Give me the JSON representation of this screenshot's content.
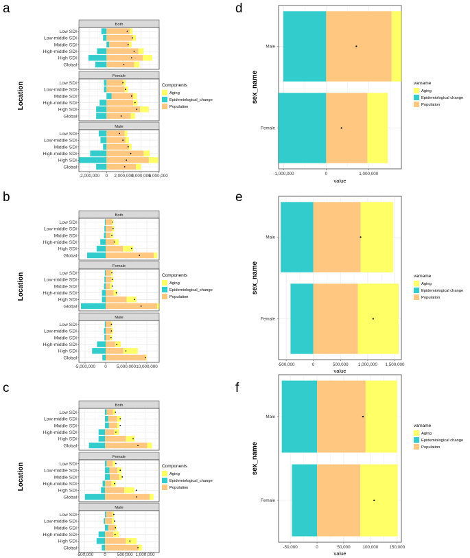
{
  "colors": {
    "aging": "#FFFF66",
    "epidemiological_change": "#33CCCC",
    "population": "#FFC77F",
    "strip_bg": "#D9D9D9",
    "grid": "#EBEBEB",
    "point": "#000000"
  },
  "chart_data": [
    {
      "panel": "a",
      "type": "bar",
      "orientation": "horizontal-stacked",
      "ylabel": "Location",
      "legend_title": "Components",
      "legend_items": [
        "Aging",
        "Epidemiological_change",
        "Population"
      ],
      "categories": [
        "Low SDI",
        "Low-middle SDI",
        "Middle SDI",
        "High-middle SDI",
        "High SDI",
        "Global"
      ],
      "xlim": [
        -3200000,
        6100000
      ],
      "xticks": [
        -2000000,
        0,
        2000000,
        4000000,
        6000000
      ],
      "xtick_labels": [
        "-2,000,000",
        "0",
        "2,000,000",
        "4,000,000",
        "6,000,000"
      ],
      "facets": [
        {
          "name": "Both",
          "aging": [
            300000,
            400000,
            300000,
            600000,
            1100000,
            600000
          ],
          "epidemiological_change": [
            -600000,
            -400000,
            300000,
            -1100000,
            -2100000,
            -1300000
          ],
          "population": [
            2700000,
            3000000,
            2300000,
            3700000,
            4200000,
            3200000
          ],
          "total": [
            2400000,
            3000000,
            2500000,
            3200000,
            2900000,
            2000000
          ]
        },
        {
          "name": "Female",
          "aging": [
            300000,
            400000,
            400000,
            500000,
            1000000,
            500000
          ],
          "epidemiological_change": [
            -300000,
            -300000,
            600000,
            -800000,
            -1200000,
            -1200000
          ],
          "population": [
            1900000,
            2100000,
            2500000,
            3100000,
            3900000,
            2800000
          ],
          "total": [
            1900000,
            2200000,
            2900000,
            3300000,
            3500000,
            1700000
          ]
        },
        {
          "name": "Male",
          "aging": [
            300000,
            400000,
            300000,
            700000,
            1100000,
            600000
          ],
          "epidemiological_change": [
            -900000,
            -700000,
            -400000,
            -1900000,
            -3200000,
            -1200000
          ],
          "population": [
            2100000,
            2200000,
            2600000,
            4300000,
            4900000,
            3400000
          ],
          "total": [
            1500000,
            1900000,
            2500000,
            2800000,
            2300000,
            2100000
          ]
        }
      ]
    },
    {
      "panel": "b",
      "type": "bar",
      "orientation": "horizontal-stacked",
      "ylabel": "Location",
      "legend_title": "Components",
      "legend_items": [
        "Aging",
        "Epidemiological_change",
        "Population"
      ],
      "categories": [
        "Low SDI",
        "Low-middle SDI",
        "Middle SDI",
        "High-middle SDI",
        "High SDI",
        "Global"
      ],
      "xlim": [
        -6500000,
        13000000
      ],
      "xticks": [
        -5000000,
        0,
        5000000,
        10000000
      ],
      "xtick_labels": [
        "-5,000,000",
        "0",
        "5,000,000",
        "10,000,000"
      ],
      "facets": [
        {
          "name": "Both",
          "aging": [
            400000,
            500000,
            600000,
            1100000,
            2500000,
            800000
          ],
          "epidemiological_change": [
            -200000,
            -300000,
            -400000,
            -1300000,
            -2200000,
            -4500000
          ],
          "population": [
            1500000,
            1600000,
            1200000,
            2100000,
            4200000,
            11700000
          ],
          "total": [
            1700000,
            1800000,
            1500000,
            2100000,
            6300000,
            8200000
          ]
        },
        {
          "name": "Female",
          "aging": [
            400000,
            500000,
            600000,
            900000,
            2400000,
            600000
          ],
          "epidemiological_change": [
            -200000,
            -300000,
            -400000,
            -900000,
            -900000,
            -6000000
          ],
          "population": [
            1300000,
            1400000,
            1000000,
            1900000,
            5100000,
            12500000
          ],
          "total": [
            1500000,
            1600000,
            1600000,
            2600000,
            7000000,
            8600000
          ]
        },
        {
          "name": "Male",
          "aging": [
            300000,
            400000,
            600000,
            1400000,
            3500000,
            200000
          ],
          "epidemiological_change": [
            -200000,
            -400000,
            -300000,
            -2100000,
            -3300000,
            -800000
          ],
          "population": [
            1300000,
            1400000,
            1000000,
            2300000,
            4300000,
            9800000
          ],
          "total": [
            1400000,
            1400000,
            1300000,
            2700000,
            4900000,
            9700000
          ]
        }
      ]
    },
    {
      "panel": "c",
      "type": "bar",
      "orientation": "horizontal-stacked",
      "ylabel": "Location",
      "legend_title": "Components",
      "legend_items": [
        "Aging",
        "Epidemiological_change",
        "Population"
      ],
      "categories": [
        "Low SDI",
        "Low-middle SDI",
        "Middle SDI",
        "High-middle SDI",
        "High SDI",
        "Global"
      ],
      "xlim": [
        -650000,
        1350000
      ],
      "xticks": [
        -500000,
        0,
        500000,
        1000000
      ],
      "xtick_labels": [
        "-500,000",
        "0",
        "500,000",
        "1,000,000"
      ],
      "facets": [
        {
          "name": "Both",
          "aging": [
            60000,
            100000,
            60000,
            120000,
            220000,
            120000
          ],
          "epidemiological_change": [
            40000,
            80000,
            100000,
            -160000,
            -160000,
            -400000
          ],
          "population": [
            160000,
            220000,
            190000,
            230000,
            520000,
            1050000
          ],
          "total": [
            260000,
            380000,
            380000,
            270000,
            700000,
            820000
          ]
        },
        {
          "name": "Female",
          "aging": [
            60000,
            100000,
            70000,
            110000,
            250000,
            100000
          ],
          "epidemiological_change": [
            40000,
            110000,
            120000,
            -60000,
            -100000,
            -500000
          ],
          "population": [
            150000,
            200000,
            230000,
            160000,
            480000,
            1110000
          ],
          "total": [
            270000,
            380000,
            430000,
            240000,
            780000,
            790000
          ]
        },
        {
          "name": "Male",
          "aging": [
            40000,
            60000,
            40000,
            140000,
            270000,
            90000
          ],
          "epidemiological_change": [
            30000,
            -30000,
            80000,
            -160000,
            -210000,
            -80000
          ],
          "population": [
            150000,
            170000,
            170000,
            210000,
            520000,
            830000
          ],
          "total": [
            220000,
            240000,
            260000,
            250000,
            620000,
            820000
          ]
        }
      ]
    },
    {
      "panel": "d",
      "type": "bar",
      "orientation": "horizontal-stacked",
      "ylabel": "sex_name",
      "xlabel": "value",
      "legend_title": "varname",
      "legend_items": [
        "Aging",
        "Epidemiological change",
        "Population"
      ],
      "categories": [
        "Male",
        "Female"
      ],
      "xlim": [
        -1120000,
        1770000
      ],
      "xticks": [
        -1000000,
        0,
        1000000
      ],
      "xtick_labels": [
        "-1,000,000",
        "0",
        "1,000,000"
      ],
      "aging": [
        240000,
        480000
      ],
      "epidemiological_change": [
        -1010000,
        -1130000
      ],
      "population": [
        1540000,
        970000
      ],
      "total": [
        710000,
        360000
      ]
    },
    {
      "panel": "e",
      "type": "bar",
      "orientation": "horizontal-stacked",
      "ylabel": "sex_name",
      "xlabel": "value",
      "legend_title": "varname",
      "legend_items": [
        "Aging",
        "Epidemiological change",
        "Population"
      ],
      "categories": [
        "Male",
        "Female"
      ],
      "xlim": [
        -640000,
        1620000
      ],
      "xticks": [
        -500000,
        0,
        500000,
        1000000,
        1500000
      ],
      "xtick_labels": [
        "-500,000",
        "0",
        "500,000",
        "1,000,000",
        "1,500,000"
      ],
      "aging": [
        600000,
        750000
      ],
      "epidemiological_change": [
        -600000,
        -420000
      ],
      "population": [
        870000,
        820000
      ],
      "total": [
        870000,
        1100000
      ]
    },
    {
      "panel": "f",
      "type": "bar",
      "orientation": "horizontal-stacked",
      "ylabel": "sex_name",
      "xlabel": "value",
      "legend_title": "varname",
      "legend_items": [
        "Aging",
        "Epidemiological change",
        "Population"
      ],
      "categories": [
        "Male",
        "Female"
      ],
      "xlim": [
        -72000,
        158000
      ],
      "xticks": [
        -50000,
        0,
        50000,
        100000,
        150000
      ],
      "xtick_labels": [
        "-50,000",
        "0",
        "50,000",
        "100,000",
        "150,000"
      ],
      "aging": [
        59000,
        70000
      ],
      "epidemiological_change": [
        -66000,
        -47000
      ],
      "population": [
        91000,
        81000
      ],
      "total": [
        86000,
        107000
      ]
    }
  ]
}
